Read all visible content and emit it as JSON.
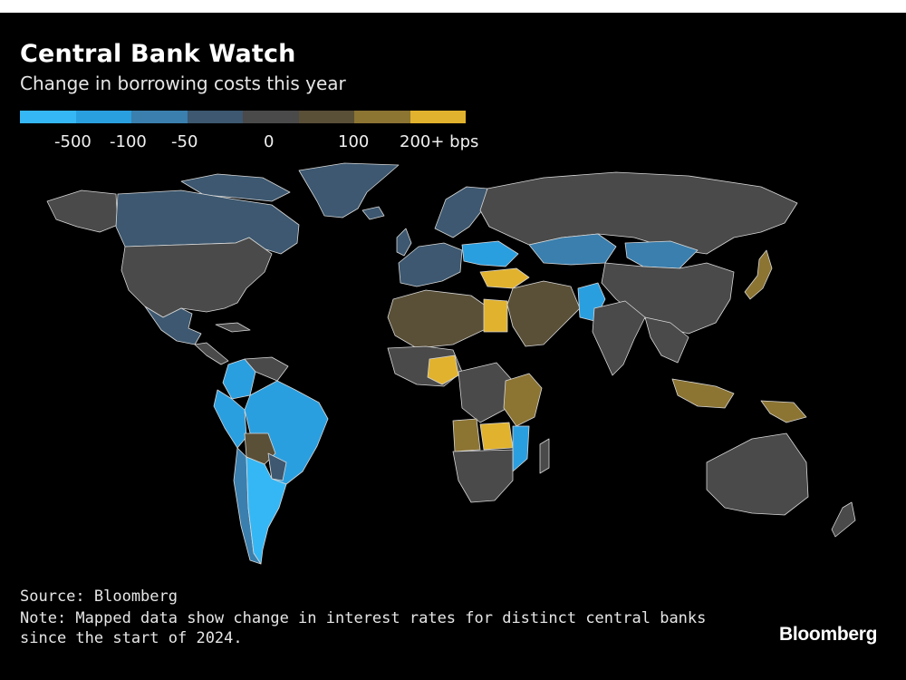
{
  "header": {
    "title": "Central Bank Watch",
    "subtitle": "Change in borrowing costs this year"
  },
  "legend": {
    "colors": [
      "#35b7f5",
      "#2a9fe0",
      "#3a7fae",
      "#3d5870",
      "#4a4a4a",
      "#5a5038",
      "#8c7433",
      "#e1b22d"
    ],
    "ticks": [
      "-500",
      "-100",
      "-50",
      "0",
      "100",
      "200+ bps"
    ]
  },
  "map_colors": {
    "ocean": "#000000",
    "no_data": "#050505",
    "neutral": "#4a4a4a",
    "border": "#d8d8d8"
  },
  "footer": {
    "source": "Source: Bloomberg",
    "note_line1": "Note: Mapped data show change in interest rates for distinct central banks",
    "note_line2": "since the start of 2024.",
    "brand": "Bloomberg"
  }
}
